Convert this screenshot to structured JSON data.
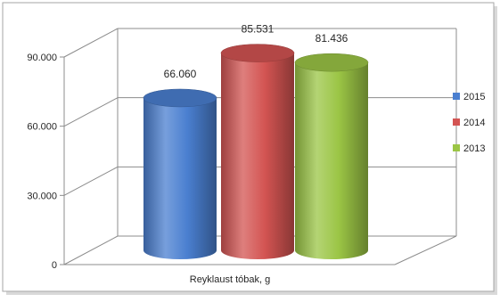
{
  "chart_data": {
    "type": "bar",
    "title": "",
    "xlabel": "",
    "ylabel": "",
    "categories": [
      "Reyklaust tóbak, g"
    ],
    "series": [
      {
        "name": "2015",
        "values": [
          66060
        ],
        "label": "66.060",
        "color": "#4a7fd0"
      },
      {
        "name": "2014",
        "values": [
          85531
        ],
        "label": "85.531",
        "color": "#d35452"
      },
      {
        "name": "2013",
        "values": [
          81436
        ],
        "label": "81.436",
        "color": "#9bc545"
      }
    ],
    "ylim": [
      0,
      90000
    ],
    "y_ticks": [
      {
        "value": 0,
        "label": "0"
      },
      {
        "value": 30000,
        "label": "30.000"
      },
      {
        "value": 60000,
        "label": "60.000"
      },
      {
        "value": 90000,
        "label": "90.000"
      }
    ],
    "grid": true,
    "legend_position": "right",
    "bar_shape": "3d-cylinder"
  }
}
